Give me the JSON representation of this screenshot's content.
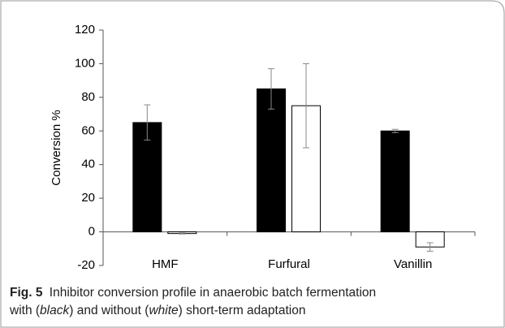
{
  "chart_data": {
    "type": "bar",
    "y_label": "Conversion %",
    "categories": [
      "HMF",
      "Furfural",
      "Vanillin"
    ],
    "series": [
      {
        "color": "#000000",
        "values": [
          65,
          85,
          60
        ],
        "errors": [
          10.5,
          12,
          1
        ]
      },
      {
        "color": "#ffffff",
        "values": [
          -1,
          75,
          -9
        ],
        "errors": [
          0.3,
          25,
          2.5
        ]
      }
    ],
    "ylim": [
      -20,
      120
    ],
    "yticks": [
      -20,
      0,
      20,
      40,
      60,
      80,
      100,
      120
    ],
    "grid": false
  },
  "caption": {
    "label": "Fig. 5",
    "parts": [
      "Inhibitor conversion profile in anaerobic batch fermentation",
      "with (",
      "black",
      ") and without (",
      "white",
      ") short-term adaptation"
    ]
  }
}
